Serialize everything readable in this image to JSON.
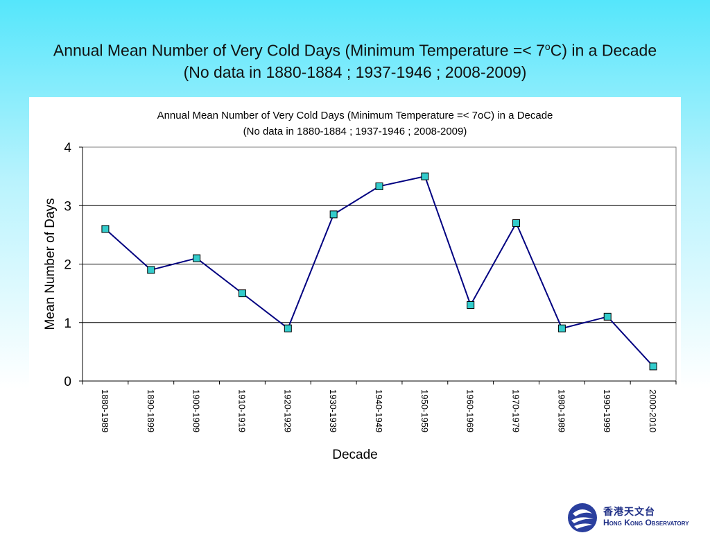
{
  "slide": {
    "title_line1": "Annual Mean Number of Very Cold Days (Minimum Temperature =< 7",
    "title_sup": "o",
    "title_line1_end": "C) in a Decade",
    "title_line2": "(No data in 1880-1884 ; 1937-1946 ; 2008-2009)"
  },
  "logo": {
    "chinese": "香港天文台",
    "english": "Hong Kong Observatory"
  },
  "chart_data": {
    "type": "line",
    "title": "Annual Mean Number of Very Cold Days (Minimum Temperature =< 7oC) in a Decade",
    "subtitle": "(No data in 1880-1884 ; 1937-1946 ; 2008-2009)",
    "xlabel": "Decade",
    "ylabel": "Mean Number of Days",
    "categories": [
      "1880-1989",
      "1890-1899",
      "1900-1909",
      "1910-1919",
      "1920-1929",
      "1930-1939",
      "1940-1949",
      "1950-1959",
      "1960-1969",
      "1970-1979",
      "1980-1989",
      "1990-1999",
      "2000-2010"
    ],
    "values": [
      2.6,
      1.9,
      2.1,
      1.5,
      0.9,
      2.85,
      3.33,
      3.5,
      1.3,
      2.7,
      0.9,
      1.1,
      0.25
    ],
    "ylim": [
      0,
      4
    ],
    "yticks": [
      0,
      1,
      2,
      3,
      4
    ],
    "grid": true,
    "legend": "none",
    "colors": {
      "line": "#000080",
      "marker": "#33cccc",
      "marker_stroke": "#000000",
      "grid": "#000000"
    }
  }
}
